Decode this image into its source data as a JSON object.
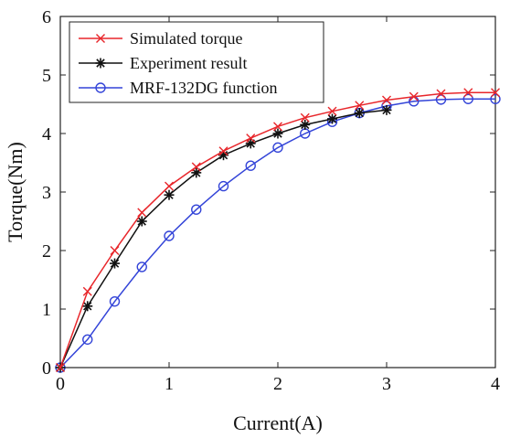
{
  "chart_data": {
    "type": "line",
    "title": "",
    "xlabel": "Current(A)",
    "ylabel": "Torque(Nm)",
    "xlim": [
      0,
      4
    ],
    "ylim": [
      0,
      6
    ],
    "xticks": [
      "0",
      "1",
      "2",
      "3",
      "4"
    ],
    "yticks": [
      "0",
      "1",
      "2",
      "3",
      "4",
      "5",
      "6"
    ],
    "grid": false,
    "legend_position": "top-left",
    "series": [
      {
        "name": "Simulated torque",
        "color": "#e8262b",
        "marker": "x",
        "x": [
          0,
          0.25,
          0.5,
          0.75,
          1.0,
          1.25,
          1.5,
          1.75,
          2.0,
          2.25,
          2.5,
          2.75,
          3.0,
          3.25,
          3.5,
          3.75,
          4.0
        ],
        "y": [
          0,
          1.3,
          2.0,
          2.65,
          3.1,
          3.43,
          3.7,
          3.92,
          4.12,
          4.27,
          4.38,
          4.48,
          4.57,
          4.63,
          4.68,
          4.7,
          4.7
        ]
      },
      {
        "name": "Experiment result",
        "color": "#111111",
        "marker": "asterisk",
        "x": [
          0,
          0.25,
          0.5,
          0.75,
          1.0,
          1.25,
          1.5,
          1.75,
          2.0,
          2.25,
          2.5,
          2.75,
          3.0
        ],
        "y": [
          0,
          1.05,
          1.78,
          2.5,
          2.95,
          3.33,
          3.63,
          3.83,
          4.0,
          4.15,
          4.25,
          4.35,
          4.4
        ]
      },
      {
        "name": "MRF-132DG function",
        "color": "#3344d8",
        "marker": "circle",
        "x": [
          0,
          0.25,
          0.5,
          0.75,
          1.0,
          1.25,
          1.5,
          1.75,
          2.0,
          2.25,
          2.5,
          2.75,
          3.0,
          3.25,
          3.5,
          3.75,
          4.0
        ],
        "y": [
          0,
          0.48,
          1.13,
          1.72,
          2.25,
          2.7,
          3.1,
          3.45,
          3.76,
          4.0,
          4.2,
          4.35,
          4.47,
          4.55,
          4.58,
          4.59,
          4.59
        ]
      }
    ]
  }
}
